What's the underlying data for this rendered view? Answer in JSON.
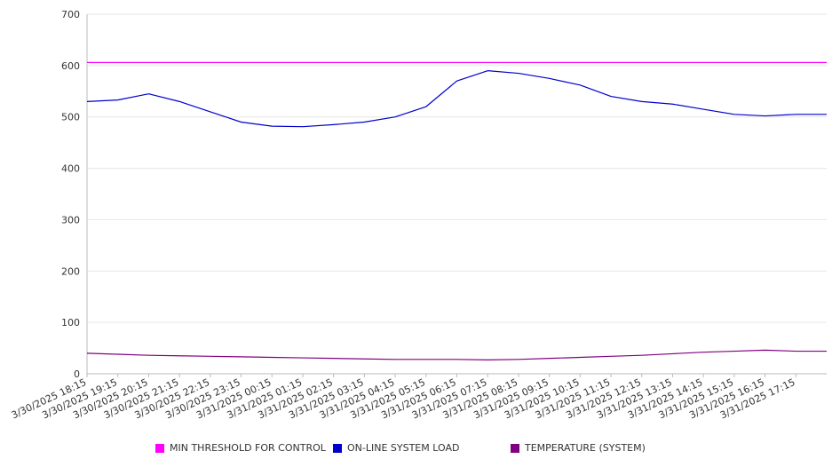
{
  "chart_data": {
    "type": "line",
    "ylim": [
      0,
      700
    ],
    "yticks": [
      0,
      100,
      200,
      300,
      400,
      500,
      600,
      700
    ],
    "grid": true,
    "x": [
      "3/30/2025 18:15",
      "3/30/2025 19:15",
      "3/30/2025 20:15",
      "3/30/2025 21:15",
      "3/30/2025 22:15",
      "3/30/2025 23:15",
      "3/31/2025 00:15",
      "3/31/2025 01:15",
      "3/31/2025 02:15",
      "3/31/2025 03:15",
      "3/31/2025 04:15",
      "3/31/2025 05:15",
      "3/31/2025 06:15",
      "3/31/2025 07:15",
      "3/31/2025 08:15",
      "3/31/2025 09:15",
      "3/31/2025 10:15",
      "3/31/2025 11:15",
      "3/31/2025 12:15",
      "3/31/2025 13:15",
      "3/31/2025 14:15",
      "3/31/2025 15:15",
      "3/31/2025 16:15",
      "3/31/2025 17:15"
    ],
    "series": [
      {
        "name": "MIN THRESHOLD FOR CONTROL",
        "color": "#ff00ff",
        "values": [
          606,
          606,
          606,
          606,
          606,
          606,
          606,
          606,
          606,
          606,
          606,
          606,
          606,
          606,
          606,
          606,
          606,
          606,
          606,
          606,
          606,
          606,
          606,
          606
        ]
      },
      {
        "name": "ON-LINE SYSTEM LOAD",
        "color": "#0000cc",
        "values": [
          530,
          533,
          545,
          530,
          510,
          490,
          482,
          481,
          485,
          490,
          500,
          520,
          570,
          590,
          585,
          575,
          562,
          540,
          530,
          525,
          515,
          505,
          502,
          505
        ]
      },
      {
        "name": "TEMPERATURE (SYSTEM)",
        "color": "#800080",
        "values": [
          40,
          38,
          36,
          35,
          34,
          33,
          32,
          31,
          30,
          29,
          28,
          28,
          28,
          27,
          28,
          30,
          32,
          34,
          36,
          39,
          42,
          44,
          46,
          44
        ]
      }
    ],
    "legend_position": "bottom"
  }
}
